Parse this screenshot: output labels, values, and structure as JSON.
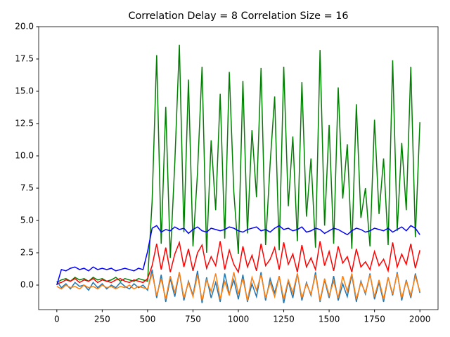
{
  "chart_data": {
    "type": "line",
    "title": "Correlation Delay = 8 Correlation Size = 16",
    "x": [
      0,
      25,
      50,
      75,
      100,
      125,
      150,
      175,
      200,
      225,
      250,
      275,
      300,
      325,
      350,
      375,
      400,
      425,
      450,
      475,
      500,
      525,
      550,
      575,
      600,
      625,
      650,
      675,
      700,
      725,
      750,
      775,
      800,
      825,
      850,
      875,
      900,
      925,
      950,
      975,
      1000,
      1025,
      1050,
      1075,
      1100,
      1125,
      1150,
      1175,
      1200,
      1225,
      1250,
      1275,
      1300,
      1325,
      1350,
      1375,
      1400,
      1425,
      1450,
      1475,
      1500,
      1525,
      1550,
      1575,
      1600,
      1625,
      1650,
      1675,
      1700,
      1725,
      1750,
      1775,
      1800,
      1825,
      1850,
      1875,
      1900,
      1925,
      1950,
      1975,
      2000
    ],
    "series": [
      {
        "color": "#1f77b4",
        "values": [
          0.3,
          -0.2,
          0.1,
          -0.3,
          0.2,
          -0.1,
          0.0,
          -0.4,
          0.2,
          -0.2,
          0.1,
          -0.3,
          0.0,
          -0.2,
          0.2,
          -0.1,
          -0.3,
          0.1,
          -0.2,
          0.0,
          -0.4,
          1.2,
          -1.0,
          0.8,
          -1.3,
          0.5,
          -0.9,
          1.0,
          -1.2,
          0.3,
          -0.8,
          1.1,
          -1.4,
          0.6,
          -1.0,
          0.2,
          -1.3,
          0.9,
          -0.7,
          0.4,
          -1.1,
          0.8,
          -1.3,
          0.1,
          -0.9,
          1.0,
          -1.2,
          0.5,
          -0.6,
          0.7,
          -1.4,
          0.3,
          -1.0,
          0.9,
          -1.2,
          0.2,
          -0.8,
          1.0,
          -1.3,
          0.4,
          -1.0,
          0.7,
          -1.2,
          0.1,
          -0.9,
          0.8,
          -1.3,
          0.3,
          -0.7,
          0.9,
          -1.1,
          0.2,
          -1.3,
          0.6,
          -0.8,
          1.0,
          -1.2,
          0.4,
          -1.0,
          0.9,
          -0.6
        ]
      },
      {
        "color": "#ff7f0e",
        "values": [
          -0.1,
          -0.3,
          0.0,
          -0.2,
          -0.1,
          -0.3,
          0.0,
          -0.2,
          -0.1,
          -0.3,
          0.0,
          -0.2,
          -0.1,
          -0.3,
          -0.1,
          -0.2,
          0.0,
          -0.3,
          -0.1,
          -0.2,
          -0.3,
          0.9,
          -0.8,
          0.5,
          -1.1,
          0.7,
          -0.6,
          1.0,
          -1.0,
          0.2,
          -0.9,
          0.8,
          -1.2,
          0.4,
          -0.5,
          0.9,
          -1.1,
          0.3,
          -0.8,
          1.0,
          -0.7,
          0.5,
          -1.2,
          0.6,
          -0.4,
          0.8,
          -1.0,
          0.2,
          -0.9,
          0.7,
          -1.1,
          0.4,
          -0.6,
          0.9,
          -1.0,
          0.1,
          -0.7,
          0.8,
          -1.2,
          0.5,
          -0.8,
          0.3,
          -1.0,
          0.7,
          -0.5,
          0.9,
          -1.1,
          0.2,
          -0.6,
          0.8,
          -0.9,
          0.4,
          -1.1,
          0.6,
          -0.7,
          0.9,
          -1.0,
          0.3,
          -0.8,
          0.7,
          -0.5
        ]
      },
      {
        "color": "#008000",
        "values": [
          0.2,
          0.4,
          0.5,
          0.3,
          0.6,
          0.4,
          0.5,
          0.3,
          0.6,
          0.4,
          0.5,
          0.3,
          0.4,
          0.6,
          0.3,
          0.5,
          0.4,
          0.3,
          0.5,
          0.4,
          0.3,
          6.5,
          17.8,
          3.2,
          13.8,
          2.1,
          9.5,
          18.6,
          4.1,
          15.9,
          3.0,
          8.7,
          16.9,
          2.5,
          11.2,
          5.8,
          14.8,
          3.6,
          16.5,
          7.2,
          2.4,
          15.8,
          4.0,
          12.0,
          6.8,
          16.8,
          3.1,
          9.4,
          14.6,
          2.7,
          16.9,
          6.1,
          11.5,
          3.4,
          15.7,
          5.3,
          9.8,
          2.9,
          18.2,
          4.6,
          12.4,
          3.2,
          15.3,
          6.7,
          10.9,
          2.8,
          14.0,
          5.2,
          7.5,
          3.0,
          12.8,
          5.5,
          9.8,
          3.1,
          17.4,
          4.2,
          11.0,
          5.8,
          16.9,
          3.7,
          12.6
        ]
      },
      {
        "color": "#ff0000",
        "values": [
          0.1,
          0.2,
          0.4,
          0.3,
          0.5,
          0.2,
          0.4,
          0.3,
          0.5,
          0.2,
          0.4,
          0.3,
          0.2,
          0.4,
          0.5,
          0.3,
          0.2,
          0.4,
          0.3,
          0.2,
          0.5,
          1.5,
          3.2,
          1.2,
          2.9,
          1.0,
          2.4,
          3.3,
          1.4,
          2.8,
          1.1,
          2.5,
          3.1,
          1.3,
          2.2,
          1.5,
          3.4,
          1.2,
          2.7,
          1.6,
          1.0,
          3.0,
          1.4,
          2.3,
          1.1,
          3.2,
          1.5,
          2.0,
          2.9,
          1.2,
          3.3,
          1.6,
          2.4,
          1.0,
          3.1,
          1.4,
          2.1,
          1.2,
          3.4,
          1.5,
          2.6,
          1.1,
          3.0,
          1.7,
          2.2,
          1.0,
          2.8,
          1.4,
          1.8,
          1.2,
          2.6,
          1.5,
          2.0,
          1.1,
          3.3,
          1.4,
          2.4,
          1.6,
          3.2,
          1.3,
          2.7
        ]
      },
      {
        "color": "#0000ff",
        "values": [
          0.0,
          1.2,
          1.1,
          1.3,
          1.4,
          1.2,
          1.3,
          1.1,
          1.4,
          1.2,
          1.3,
          1.2,
          1.3,
          1.1,
          1.2,
          1.3,
          1.2,
          1.1,
          1.3,
          1.2,
          2.6,
          4.4,
          4.6,
          4.1,
          4.3,
          4.2,
          4.5,
          4.3,
          4.4,
          4.0,
          4.3,
          4.5,
          4.2,
          4.1,
          4.4,
          4.3,
          4.2,
          4.3,
          4.5,
          4.4,
          4.2,
          4.1,
          4.3,
          4.4,
          4.5,
          4.2,
          4.3,
          4.1,
          4.4,
          4.6,
          4.3,
          4.4,
          4.2,
          4.3,
          4.5,
          4.1,
          4.2,
          4.4,
          4.3,
          4.0,
          4.2,
          4.4,
          4.3,
          4.1,
          3.9,
          4.2,
          4.4,
          4.3,
          4.1,
          4.2,
          4.4,
          4.3,
          4.2,
          4.4,
          4.1,
          4.3,
          4.5,
          4.2,
          4.6,
          4.4,
          3.9
        ]
      }
    ],
    "xlim": [
      -100,
      2100
    ],
    "ylim": [
      -1.9,
      20
    ],
    "xticks": [
      0,
      250,
      500,
      750,
      1000,
      1250,
      1500,
      1750,
      2000
    ],
    "yticks": [
      {
        "value": 0,
        "label": "0.0"
      },
      {
        "value": 2.5,
        "label": "2.5"
      },
      {
        "value": 5,
        "label": "5.0"
      },
      {
        "value": 7.5,
        "label": "7.5"
      },
      {
        "value": 10,
        "label": "10.0"
      },
      {
        "value": 12.5,
        "label": "12.5"
      },
      {
        "value": 15,
        "label": "15.0"
      },
      {
        "value": 17.5,
        "label": "17.5"
      },
      {
        "value": 20,
        "label": "20.0"
      }
    ],
    "grid": false
  }
}
